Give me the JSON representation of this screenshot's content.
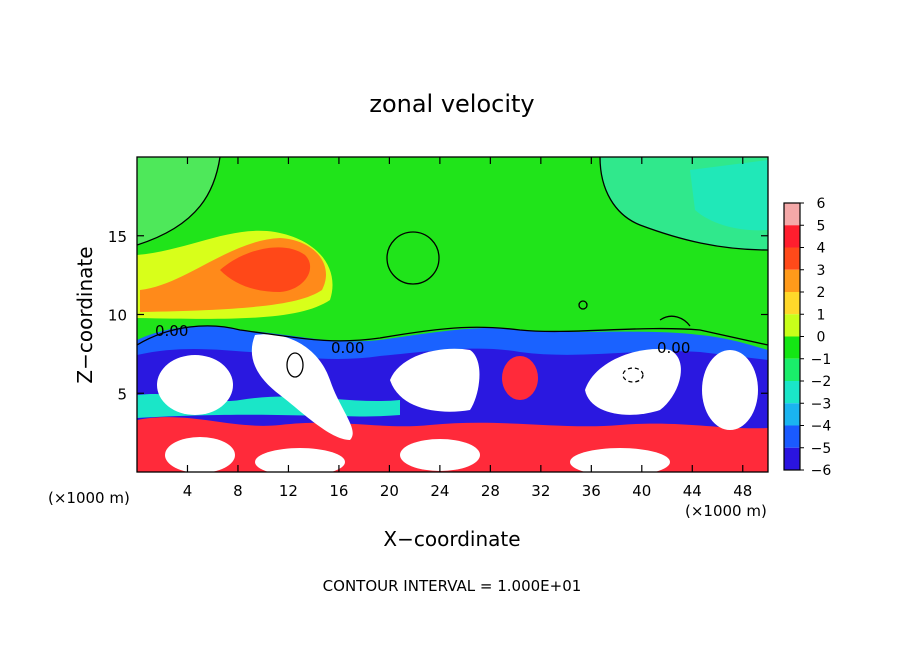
{
  "chart_data": {
    "type": "heatmap",
    "title": "zonal velocity",
    "xlabel": "X−coordinate",
    "ylabel": "Z−coordinate",
    "x_unit": "(×1000 m)",
    "z_unit": "(×1000 m)",
    "xlim": [
      0,
      50
    ],
    "ylim": [
      0,
      20
    ],
    "x_ticks": [
      {
        "value": 4,
        "label": "4"
      },
      {
        "value": 8,
        "label": "8"
      },
      {
        "value": 12,
        "label": "12"
      },
      {
        "value": 16,
        "label": "16"
      },
      {
        "value": 20,
        "label": "20"
      },
      {
        "value": 24,
        "label": "24"
      },
      {
        "value": 28,
        "label": "28"
      },
      {
        "value": 32,
        "label": "32"
      },
      {
        "value": 36,
        "label": "36"
      },
      {
        "value": 40,
        "label": "40"
      },
      {
        "value": 44,
        "label": "44"
      },
      {
        "value": 48,
        "label": "48"
      }
    ],
    "y_ticks": [
      {
        "value": 5,
        "label": "5"
      },
      {
        "value": 10,
        "label": "10"
      },
      {
        "value": 15,
        "label": "15"
      }
    ],
    "colorbar": {
      "levels": [
        "6",
        "5",
        "4",
        "3",
        "2",
        "1",
        "0",
        "−1",
        "−2",
        "−3",
        "−4",
        "−5",
        "−6"
      ],
      "colors": [
        "#f4a8a8",
        "#ff1e2e",
        "#ff4a1a",
        "#ff9a1a",
        "#ffd82a",
        "#c8ff1a",
        "#14e614",
        "#1aee6a",
        "#1ae6c8",
        "#1ab4f0",
        "#1a5aff",
        "#2a14e0",
        "#6a14a8"
      ]
    },
    "contour_labels": [
      "0.00",
      "0.00",
      "0.00"
    ],
    "footnote": "CONTOUR INTERVAL = 1.000E+01"
  }
}
